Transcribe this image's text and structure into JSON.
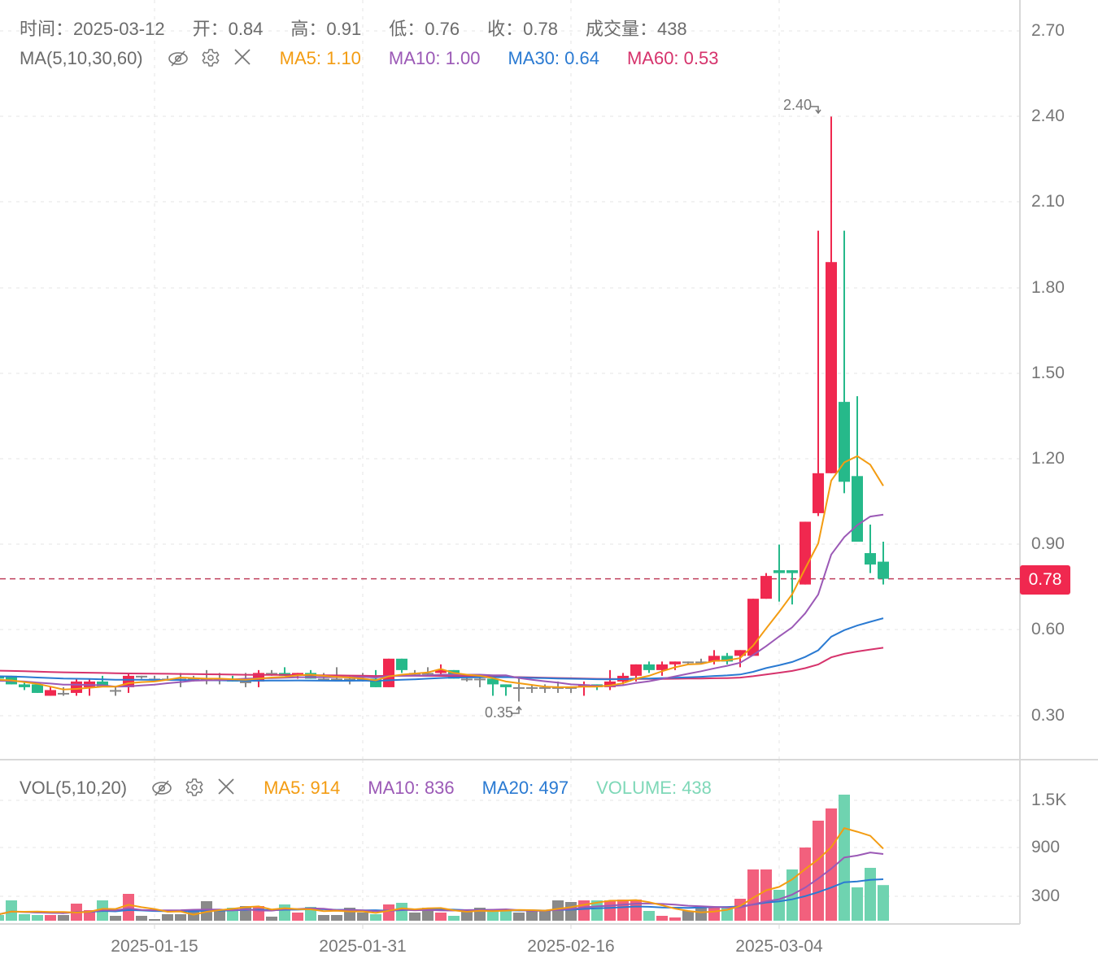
{
  "ohlc_header": {
    "time_label": "时间：",
    "time": "2025-03-12",
    "open_label": "开：",
    "open": "0.84",
    "high_label": "高：",
    "high": "0.91",
    "low_label": "低：",
    "low": "0.76",
    "close_label": "收：",
    "close": "0.78",
    "volume_label": "成交量：",
    "volume": "438"
  },
  "main_indicator": {
    "name": "MA(5,10,30,60)",
    "icons": [
      "eye-hidden-icon",
      "gear-icon",
      "close-icon"
    ],
    "items": [
      {
        "label": "MA5: 1.10",
        "color": "#f39c12"
      },
      {
        "label": "MA10: 1.00",
        "color": "#9b59b6"
      },
      {
        "label": "MA30: 0.64",
        "color": "#2a7ad2"
      },
      {
        "label": "MA60: 0.53",
        "color": "#d6336c"
      }
    ]
  },
  "volume_indicator": {
    "name": "VOL(5,10,20)",
    "icons": [
      "eye-hidden-icon",
      "gear-icon",
      "close-icon"
    ],
    "items": [
      {
        "label": "MA5: 914",
        "color": "#f39c12"
      },
      {
        "label": "MA10: 836",
        "color": "#9b59b6"
      },
      {
        "label": "MA20: 497",
        "color": "#2a7ad2"
      },
      {
        "label": "VOLUME: 438",
        "color": "#7fd8b8"
      }
    ]
  },
  "price_axis": {
    "ticks": [
      "2.70",
      "2.40",
      "2.10",
      "1.80",
      "1.50",
      "1.20",
      "0.90",
      "0.60",
      "0.30"
    ]
  },
  "volume_axis": {
    "ticks": [
      "1.5K",
      "900",
      "300"
    ]
  },
  "x_axis": {
    "ticks": [
      "2025-01-15",
      "2025-01-31",
      "2025-02-16",
      "2025-03-04"
    ]
  },
  "current_price": "0.78",
  "annotations": {
    "max_label": "2.40",
    "min_label": "0.35"
  },
  "colors": {
    "up": "#f0284f",
    "down": "#26b98a",
    "flat": "#888888",
    "vol_up": "#f2607d",
    "vol_down": "#6fd3b0",
    "vol_flat": "#8a8a8a"
  },
  "chart_data": {
    "type": "candlestick",
    "title": "",
    "x_ticks": [
      "2025-01-15",
      "2025-01-31",
      "2025-02-16",
      "2025-03-04"
    ],
    "ylim": [
      0.2,
      2.75
    ],
    "y_ticks": [
      0.3,
      0.6,
      0.9,
      1.2,
      1.5,
      1.8,
      2.1,
      2.4,
      2.7
    ],
    "last": {
      "date": "2025-03-12",
      "open": 0.84,
      "high": 0.91,
      "low": 0.76,
      "close": 0.78,
      "volume": 438
    },
    "candles": [
      [
        0.44,
        0.44,
        0.42,
        0.43,
        90
      ],
      [
        0.44,
        0.44,
        0.4,
        0.41,
        60
      ],
      [
        0.41,
        0.44,
        0.4,
        0.44,
        90
      ],
      [
        0.44,
        0.44,
        0.42,
        0.43,
        70
      ],
      [
        0.44,
        0.44,
        0.41,
        0.41,
        250
      ],
      [
        0.41,
        0.42,
        0.39,
        0.4,
        80
      ],
      [
        0.41,
        0.41,
        0.38,
        0.38,
        70
      ],
      [
        0.37,
        0.4,
        0.37,
        0.39,
        70
      ],
      [
        0.38,
        0.4,
        0.37,
        0.38,
        70
      ],
      [
        0.38,
        0.43,
        0.37,
        0.42,
        210
      ],
      [
        0.4,
        0.43,
        0.37,
        0.42,
        130
      ],
      [
        0.42,
        0.44,
        0.41,
        0.4,
        250
      ],
      [
        0.39,
        0.4,
        0.37,
        0.39,
        60
      ],
      [
        0.4,
        0.45,
        0.38,
        0.44,
        330
      ],
      [
        0.44,
        0.44,
        0.43,
        0.44,
        60
      ],
      [
        0.43,
        0.44,
        0.43,
        0.43,
        20
      ],
      [
        0.43,
        0.44,
        0.43,
        0.43,
        80
      ],
      [
        0.43,
        0.45,
        0.4,
        0.43,
        80
      ],
      [
        0.43,
        0.44,
        0.42,
        0.43,
        130
      ],
      [
        0.43,
        0.46,
        0.41,
        0.43,
        240
      ],
      [
        0.43,
        0.45,
        0.41,
        0.43,
        120
      ],
      [
        0.43,
        0.44,
        0.42,
        0.42,
        160
      ],
      [
        0.42,
        0.45,
        0.4,
        0.42,
        180
      ],
      [
        0.42,
        0.46,
        0.4,
        0.45,
        180
      ],
      [
        0.45,
        0.46,
        0.44,
        0.45,
        50
      ],
      [
        0.45,
        0.47,
        0.44,
        0.44,
        200
      ],
      [
        0.44,
        0.45,
        0.43,
        0.45,
        100
      ],
      [
        0.45,
        0.46,
        0.43,
        0.43,
        170
      ],
      [
        0.43,
        0.45,
        0.43,
        0.43,
        70
      ],
      [
        0.43,
        0.47,
        0.42,
        0.43,
        70
      ],
      [
        0.43,
        0.44,
        0.41,
        0.43,
        160
      ],
      [
        0.43,
        0.45,
        0.42,
        0.43,
        100
      ],
      [
        0.43,
        0.46,
        0.4,
        0.4,
        80
      ],
      [
        0.4,
        0.5,
        0.4,
        0.5,
        200
      ],
      [
        0.5,
        0.5,
        0.45,
        0.46,
        220
      ],
      [
        0.45,
        0.46,
        0.44,
        0.45,
        100
      ],
      [
        0.45,
        0.47,
        0.44,
        0.45,
        160
      ],
      [
        0.45,
        0.48,
        0.44,
        0.46,
        100
      ],
      [
        0.46,
        0.46,
        0.43,
        0.43,
        60
      ],
      [
        0.43,
        0.44,
        0.42,
        0.43,
        130
      ],
      [
        0.43,
        0.44,
        0.4,
        0.43,
        160
      ],
      [
        0.43,
        0.43,
        0.37,
        0.41,
        140
      ],
      [
        0.41,
        0.41,
        0.37,
        0.4,
        130
      ],
      [
        0.4,
        0.43,
        0.35,
        0.4,
        100
      ],
      [
        0.4,
        0.41,
        0.38,
        0.4,
        120
      ],
      [
        0.4,
        0.41,
        0.38,
        0.4,
        130
      ],
      [
        0.4,
        0.42,
        0.38,
        0.4,
        250
      ],
      [
        0.4,
        0.4,
        0.38,
        0.4,
        230
      ],
      [
        0.4,
        0.42,
        0.37,
        0.41,
        250
      ],
      [
        0.41,
        0.41,
        0.39,
        0.4,
        250
      ],
      [
        0.4,
        0.46,
        0.39,
        0.42,
        250
      ],
      [
        0.42,
        0.45,
        0.41,
        0.44,
        260
      ],
      [
        0.44,
        0.48,
        0.42,
        0.48,
        260
      ],
      [
        0.48,
        0.49,
        0.45,
        0.46,
        120
      ],
      [
        0.46,
        0.49,
        0.44,
        0.48,
        60
      ],
      [
        0.48,
        0.49,
        0.46,
        0.49,
        40
      ],
      [
        0.49,
        0.49,
        0.48,
        0.49,
        120
      ],
      [
        0.49,
        0.5,
        0.48,
        0.49,
        170
      ],
      [
        0.49,
        0.53,
        0.48,
        0.51,
        170
      ],
      [
        0.51,
        0.52,
        0.48,
        0.49,
        170
      ],
      [
        0.51,
        0.53,
        0.47,
        0.53,
        270
      ],
      [
        0.51,
        0.71,
        0.51,
        0.71,
        630
      ],
      [
        0.71,
        0.8,
        0.71,
        0.79,
        630
      ],
      [
        0.81,
        0.9,
        0.7,
        0.8,
        380
      ],
      [
        0.81,
        0.81,
        0.69,
        0.8,
        630
      ],
      [
        0.76,
        0.98,
        0.76,
        0.98,
        900
      ],
      [
        1.01,
        2.0,
        1.0,
        1.15,
        1230
      ],
      [
        1.15,
        2.4,
        1.15,
        1.89,
        1380
      ],
      [
        1.4,
        2.0,
        1.08,
        1.12,
        1550
      ],
      [
        1.14,
        1.42,
        0.93,
        0.91,
        410
      ],
      [
        0.87,
        0.97,
        0.8,
        0.83,
        650
      ],
      [
        0.84,
        0.91,
        0.76,
        0.78,
        438
      ]
    ],
    "ma": {
      "MA5": {
        "color": "#f39c12",
        "last": 1.1
      },
      "MA10": {
        "color": "#9b59b6",
        "last": 1.0
      },
      "MA30": {
        "color": "#2a7ad2",
        "last": 0.64
      },
      "MA60": {
        "color": "#d6336c",
        "last": 0.53
      }
    },
    "volume_ma": {
      "MA5": 914,
      "MA10": 836,
      "MA20": 497
    }
  }
}
